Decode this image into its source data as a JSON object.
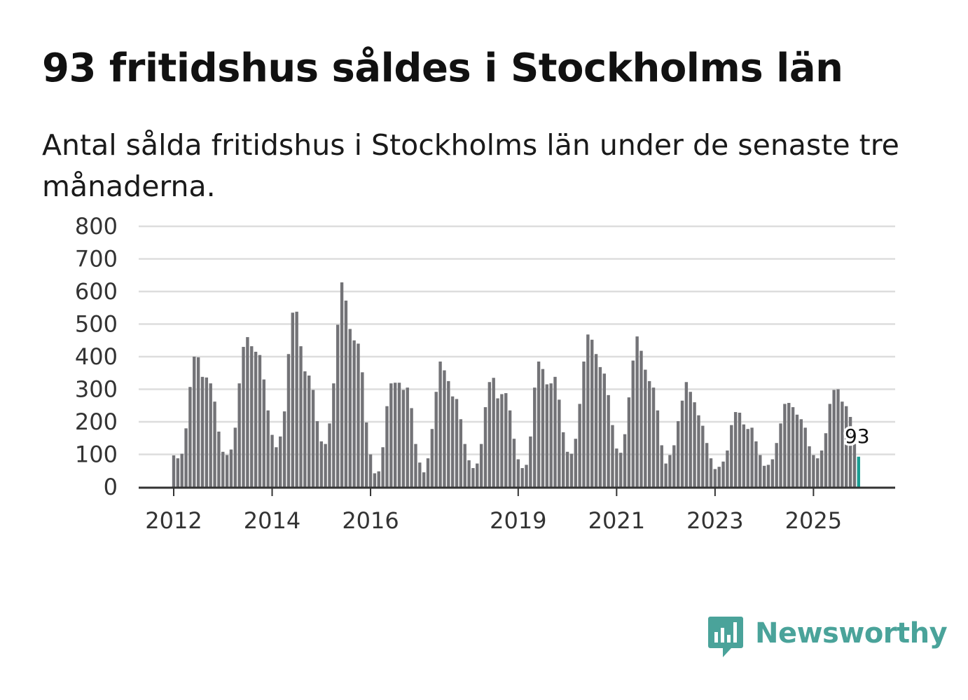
{
  "title": "93 fritidshus såldes i Stockholms län",
  "subtitle": "Antal sålda fritidshus i Stockholms län under de senaste tre månaderna.",
  "brand": {
    "name": "Newsworthy",
    "icon": "newsworthy-logo-icon",
    "color": "#4aa39a"
  },
  "chart_data": {
    "type": "bar",
    "title": "93 fritidshus såldes i Stockholms län",
    "subtitle": "Antal sålda fritidshus i Stockholms län under de senaste tre månaderna.",
    "xlabel": "",
    "ylabel": "",
    "ylim": [
      0,
      800
    ],
    "y_ticks": [
      "0",
      "100",
      "200",
      "300",
      "400",
      "500",
      "600",
      "700",
      "800"
    ],
    "x_ticks": [
      "2012",
      "2014",
      "2016",
      "2019",
      "2021",
      "2023",
      "2025"
    ],
    "frequency": "monthly (rolling three-month total)",
    "start": "2012-01",
    "end": "2025-12",
    "grid": true,
    "legend": "none",
    "bar_color": "#737377",
    "highlight_color": "#1a9e93",
    "highlight_index": 167,
    "highlight_label": "93",
    "series": [
      {
        "values": [
          97,
          88,
          102,
          180,
          307,
          400,
          398,
          338,
          336,
          318,
          262,
          170,
          108,
          98,
          115,
          182,
          318,
          430,
          460,
          432,
          415,
          405,
          330,
          235,
          160,
          122,
          155,
          232,
          408,
          535,
          538,
          432,
          355,
          342,
          298,
          202,
          140,
          132,
          195,
          318,
          498,
          628,
          572,
          485,
          450,
          440,
          352,
          198,
          100,
          42,
          48,
          122,
          248,
          318,
          320,
          320,
          298,
          305,
          242,
          132,
          75,
          45,
          88,
          178,
          292,
          385,
          358,
          325,
          278,
          270,
          208,
          132,
          82,
          58,
          72,
          132,
          245,
          322,
          335,
          272,
          285,
          288,
          235,
          148,
          85,
          58,
          68,
          155,
          305,
          385,
          362,
          315,
          318,
          338,
          268,
          168,
          108,
          102,
          148,
          255,
          385,
          468,
          452,
          408,
          368,
          348,
          282,
          190,
          118,
          105,
          162,
          275,
          388,
          462,
          418,
          360,
          325,
          305,
          235,
          128,
          72,
          98,
          128,
          202,
          265,
          322,
          292,
          260,
          220,
          188,
          135,
          88,
          55,
          62,
          78,
          112,
          190,
          230,
          228,
          192,
          178,
          182,
          140,
          98,
          65,
          68,
          85,
          135,
          195,
          255,
          258,
          245,
          222,
          208,
          182,
          125,
          98,
          88,
          112,
          165,
          255,
          298,
          300,
          262,
          248,
          215,
          132,
          93
        ]
      }
    ]
  }
}
